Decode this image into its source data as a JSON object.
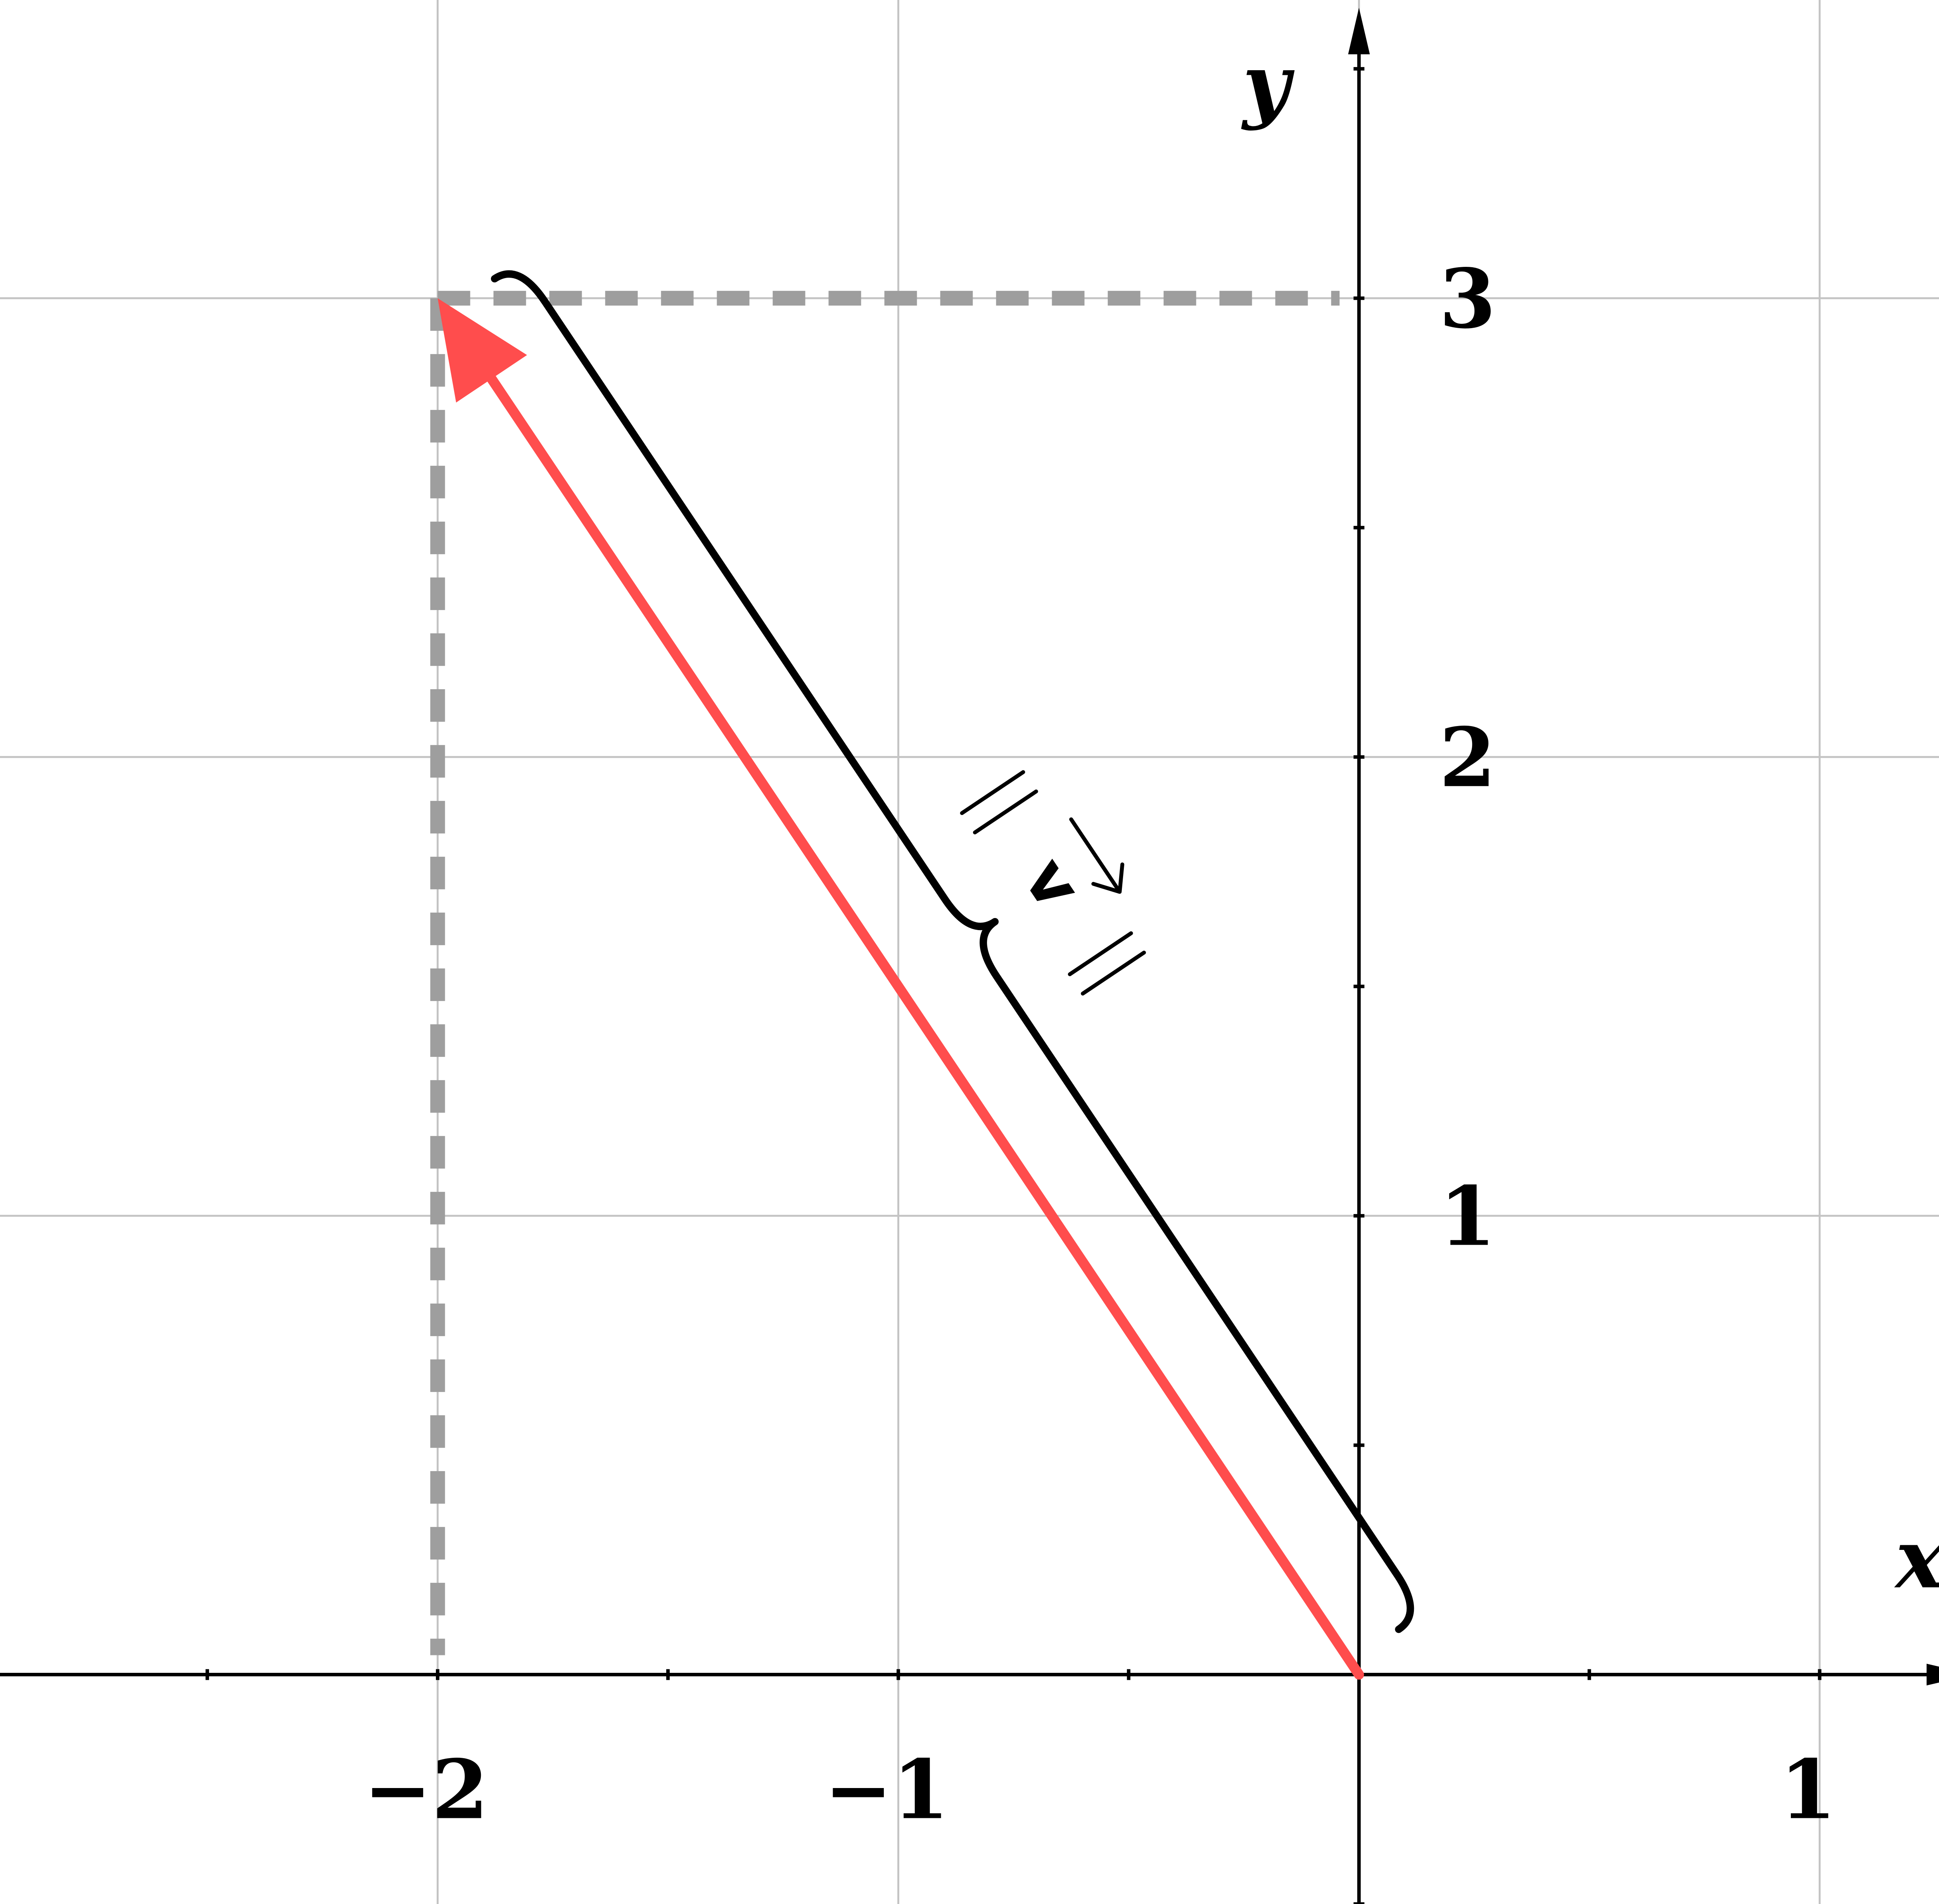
{
  "diagram": {
    "axes": {
      "x_label": "x",
      "y_label": "y",
      "x_ticks": [
        {
          "value": -2,
          "label": "−2"
        },
        {
          "value": -1,
          "label": "−1"
        },
        {
          "value": 1,
          "label": "1"
        }
      ],
      "y_ticks": [
        {
          "value": 1,
          "label": "1"
        },
        {
          "value": 2,
          "label": "2"
        },
        {
          "value": 3,
          "label": "3"
        }
      ],
      "x_range": [
        -2.95,
        1.35
      ],
      "y_range": [
        -0.5,
        3.65
      ],
      "minor_tick_step": 0.5,
      "grid": true
    },
    "vector": {
      "name": "v",
      "tail": [
        0,
        0
      ],
      "head": [
        -2,
        3
      ],
      "color": "#ff4d4d"
    },
    "components": {
      "x_component": -2,
      "y_component": 3,
      "line_style": "dashed",
      "color": "#9e9e9e"
    },
    "norm_label": {
      "text": "v",
      "notation": "norm with arrow over v"
    }
  }
}
